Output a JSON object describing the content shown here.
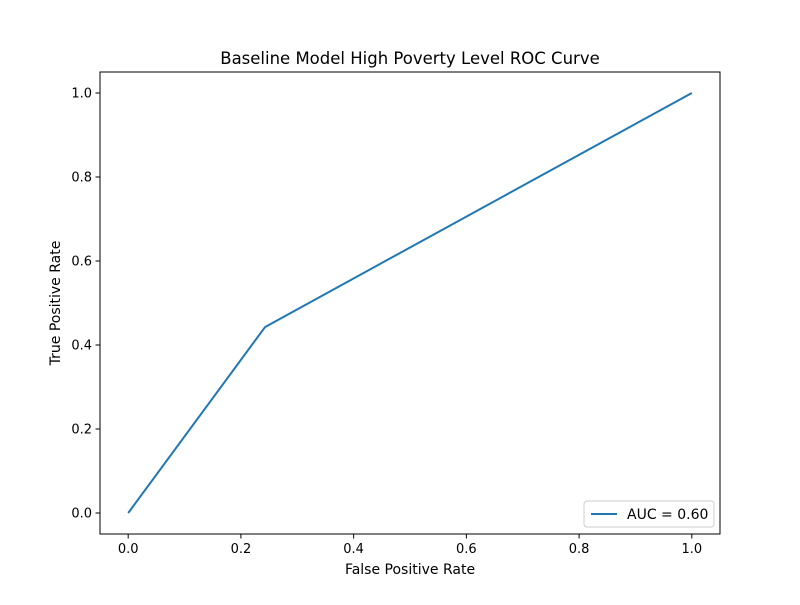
{
  "chart_data": {
    "type": "line",
    "title": "Baseline Model High Poverty Level ROC Curve",
    "xlabel": "False Positive Rate",
    "ylabel": "True Positive Rate",
    "xlim": [
      -0.05,
      1.05
    ],
    "ylim": [
      -0.05,
      1.05
    ],
    "xticks": [
      0.0,
      0.2,
      0.4,
      0.6,
      0.8,
      1.0
    ],
    "yticks": [
      0.0,
      0.2,
      0.4,
      0.6,
      0.8,
      1.0
    ],
    "xtick_labels": [
      "0.0",
      "0.2",
      "0.4",
      "0.6",
      "0.8",
      "1.0"
    ],
    "ytick_labels": [
      "0.0",
      "0.2",
      "0.4",
      "0.6",
      "0.8",
      "1.0"
    ],
    "grid": false,
    "legend_position": "lower-right",
    "series": [
      {
        "name": "AUC = 0.60",
        "color": "#1f77b4",
        "x": [
          0.0,
          0.243,
          1.0
        ],
        "y": [
          0.0,
          0.443,
          1.0
        ]
      }
    ]
  }
}
